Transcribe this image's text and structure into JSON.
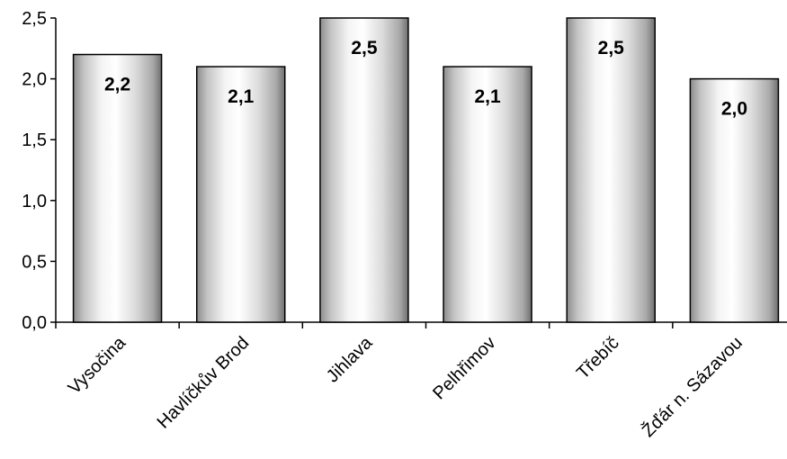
{
  "chart_data": {
    "type": "bar",
    "categories": [
      "Vysočina",
      "Havlíčkův Brod",
      "Jihlava",
      "Pelhřimov",
      "Třebíč",
      "Žďár n. Sázavou"
    ],
    "values": [
      2.2,
      2.1,
      2.5,
      2.1,
      2.5,
      2.0
    ],
    "data_labels": [
      "2,2",
      "2,1",
      "2,5",
      "2,1",
      "2,5",
      "2,0"
    ],
    "ylim": [
      0,
      2.5
    ],
    "y_ticks": [
      0,
      0.5,
      1.0,
      1.5,
      2.0,
      2.5
    ],
    "y_tick_labels": [
      "0,0",
      "0,5",
      "1,0",
      "1,5",
      "2,0",
      "2,5"
    ],
    "title": "",
    "xlabel": "",
    "ylabel": "",
    "grid": false,
    "legend": "none",
    "bar_fill": "gradient-gray",
    "colors": {
      "bar_light": "#ffffff",
      "bar_dark": "#7a7a7a",
      "outline": "#000000",
      "background": "#ffffff"
    }
  }
}
